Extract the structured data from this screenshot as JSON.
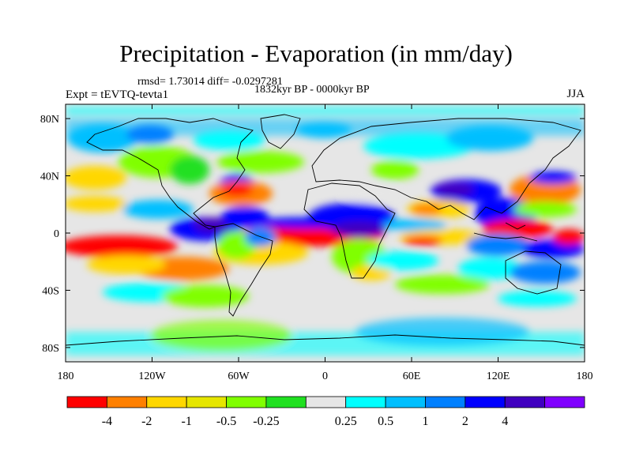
{
  "title": "Precipitation - Evaporation (in mm/day)",
  "stats_text": "rmsd= 1.73014 diff= -0.0297281",
  "period_text": "1832kyr BP - 0000kyr BP",
  "left_label": "Expt = tEVTQ-tevta1",
  "right_label": "JJA",
  "map": {
    "projection": "cylindrical-equidistant",
    "lon_range": [
      -180,
      180
    ],
    "lat_range": [
      -90,
      90
    ],
    "lat_ticks": [
      "80N",
      "40N",
      "0",
      "40S",
      "80S"
    ],
    "lon_ticks": [
      "180",
      "120W",
      "60W",
      "0",
      "60E",
      "120E",
      "180"
    ],
    "missing_color": "#e6e6e6"
  },
  "colorbar": {
    "colors": [
      "#ff0000",
      "#ff8000",
      "#ffd700",
      "#e6e600",
      "#80ff00",
      "#20e020",
      "#e6e6e6",
      "#00ffff",
      "#00bfff",
      "#0080ff",
      "#0000ff",
      "#4000c0",
      "#8000ff"
    ],
    "labels": [
      "-4",
      "-2",
      "-1",
      "-0.5",
      "-0.25",
      "0.25",
      "0.5",
      "1",
      "2",
      "4"
    ]
  }
}
